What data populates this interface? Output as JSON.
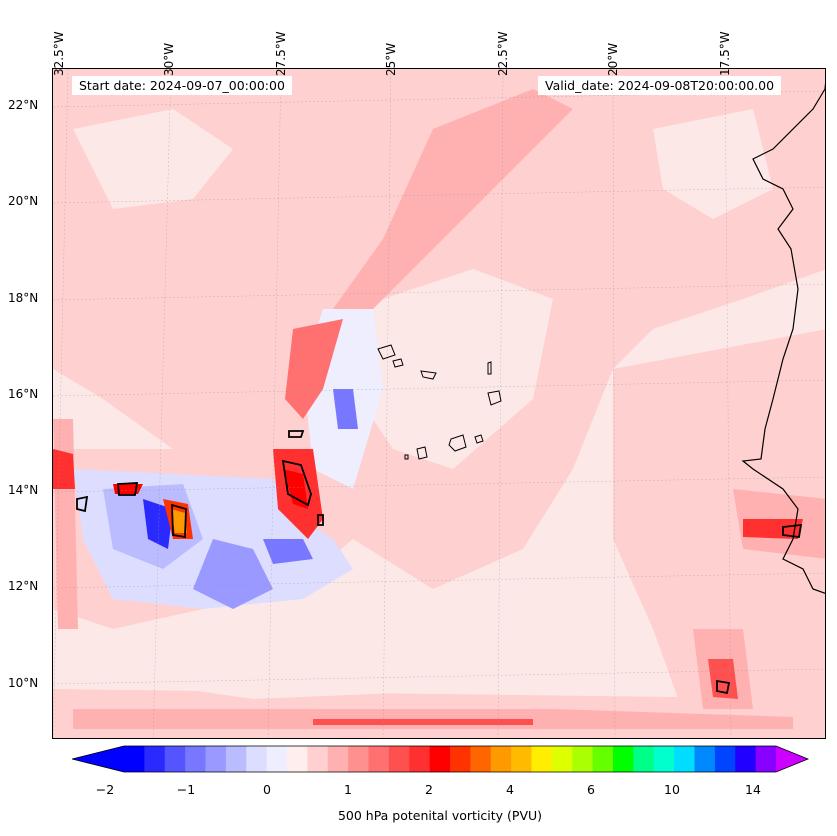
{
  "map": {
    "start_date": "Start date: 2024-09-07_00:00:00",
    "valid_date": "Valid_date: 2024-09-08T20:00:00.00",
    "longitude_labels": [
      "32.5°W",
      "30°W",
      "27.5°W",
      "25°W",
      "22.5°W",
      "20°W",
      "17.5°W"
    ],
    "latitude_labels": [
      "22°N",
      "20°N",
      "18°N",
      "16°N",
      "14°N",
      "12°N",
      "10°N"
    ],
    "colorbar": {
      "label": "500 hPa potenital vorticity (PVU)",
      "ticks": [
        "−2",
        "−1",
        "0",
        "1",
        "2",
        "4",
        "6",
        "10",
        "14"
      ],
      "colors": [
        "#0000ff",
        "#2a2aff",
        "#5555ff",
        "#7777ff",
        "#9999ff",
        "#bbbbff",
        "#ddddff",
        "#eeeeff",
        "#ffeeee",
        "#ffd0d0",
        "#ffb0b0",
        "#ff9090",
        "#ff7070",
        "#ff5050",
        "#ff3030",
        "#ff0000",
        "#ff3300",
        "#ff6600",
        "#ff9900",
        "#ffbb00",
        "#ffee00",
        "#ddff00",
        "#aaff00",
        "#66ff00",
        "#00ff00",
        "#00ff88",
        "#00ffcc",
        "#00ddff",
        "#0088ff",
        "#0044ff",
        "#2200ff",
        "#8800ff"
      ],
      "under_color": "#0000ff",
      "over_color": "#cc00ff"
    }
  }
}
